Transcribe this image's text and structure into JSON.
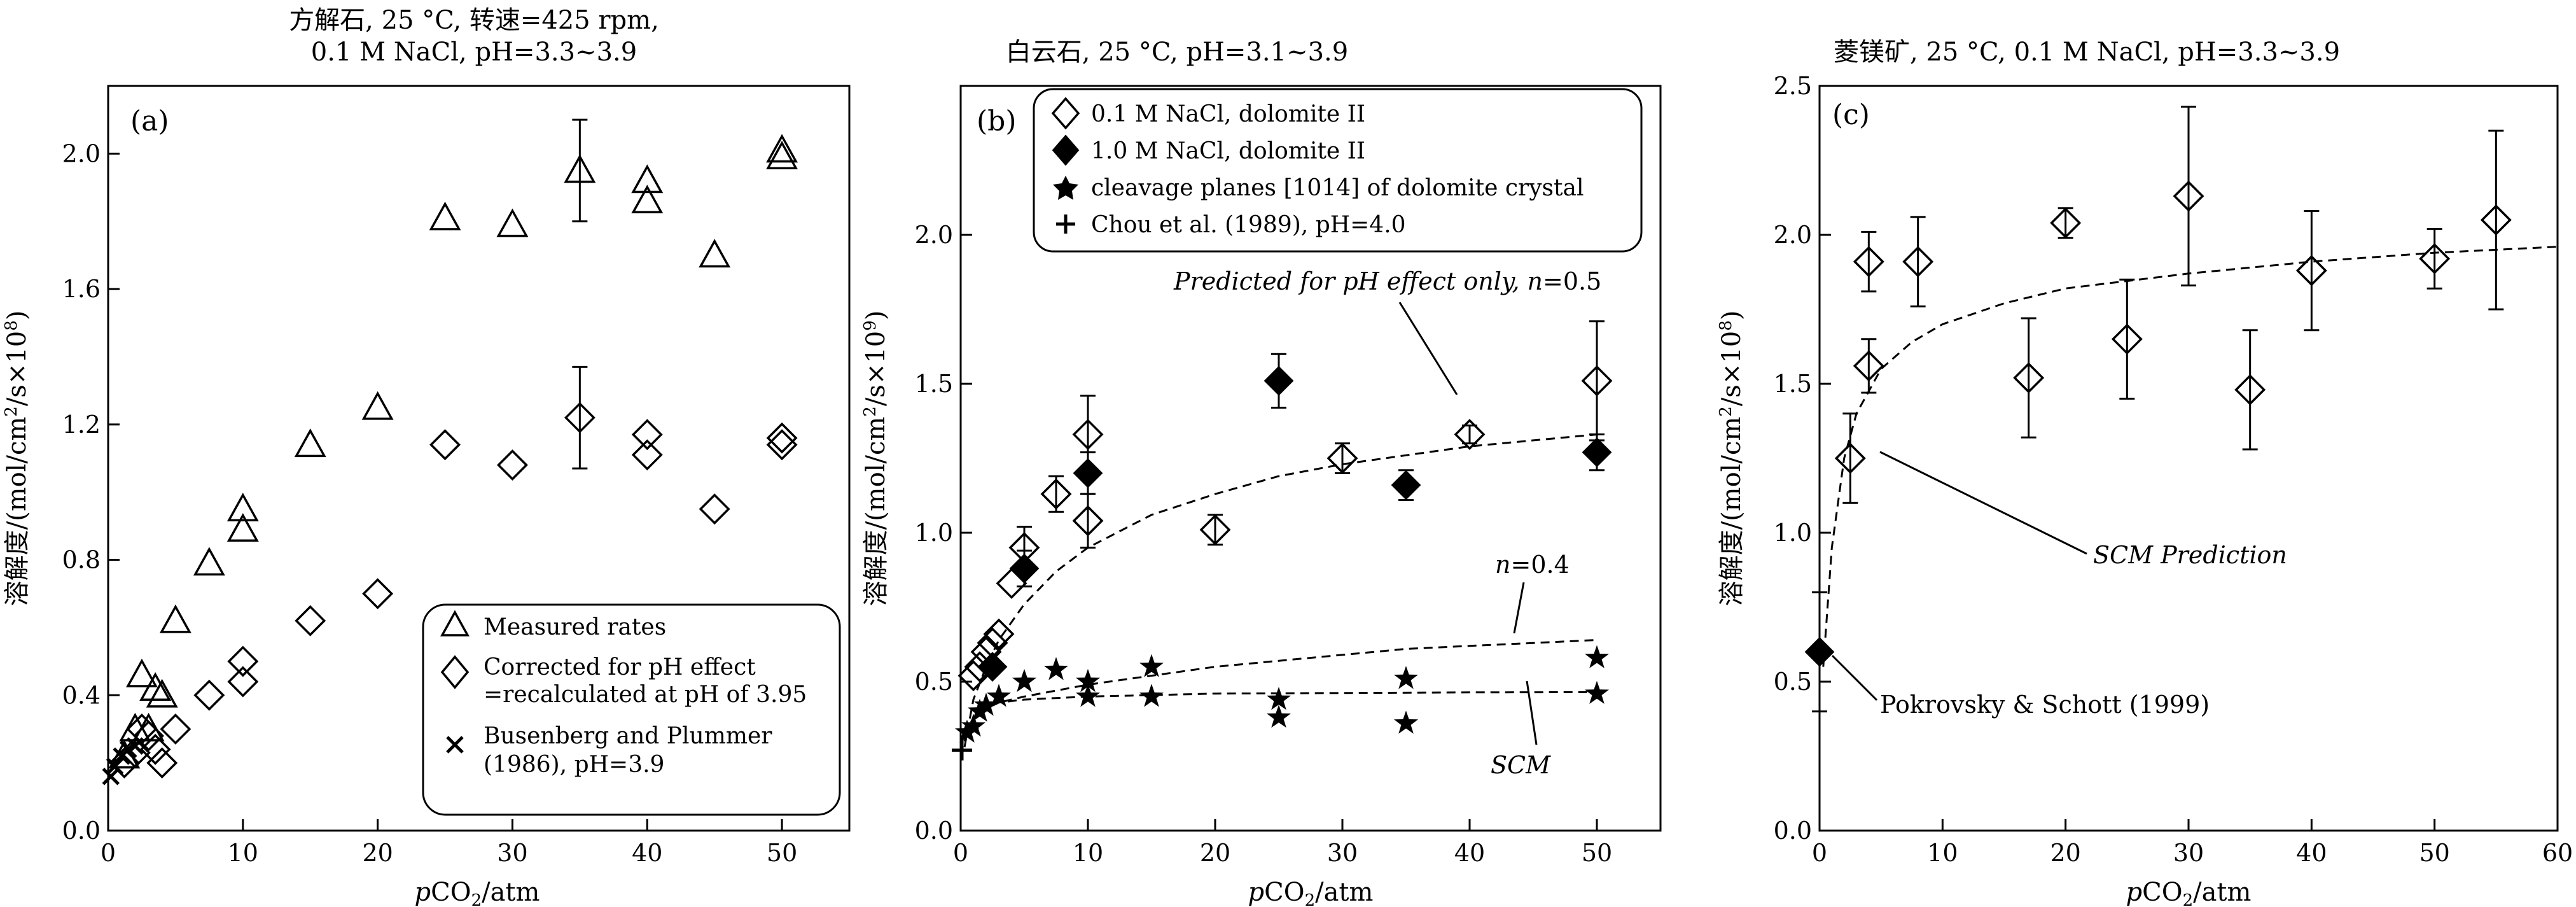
{
  "charts": [
    {
      "title_lines": [
        "方解石, 25 °C, 转速=425 rpm,",
        "0.1 M NaCl, pH=3.3~3.9"
      ],
      "panel_label": "(a)",
      "xlabel_var": "p",
      "xlabel_main": "CO",
      "xlabel_sub": "2",
      "xlabel_unit": "/atm",
      "ylabel_pre": "溶解度/(mol/cm",
      "ylabel_sup1": "2",
      "ylabel_mid": "/s×10",
      "ylabel_sup2": "8",
      "ylabel_post": ")",
      "legend": [
        {
          "label_lines": [
            "Measured rates"
          ]
        },
        {
          "label_lines": [
            "Corrected for pH effect",
            "=recalculated at pH of 3.95"
          ]
        },
        {
          "label_lines": [
            "Busenberg and Plummer",
            "(1986), pH=3.9"
          ]
        }
      ]
    },
    {
      "title_lines": [
        "白云石, 25 °C, pH=3.1~3.9"
      ],
      "panel_label": "(b)",
      "xlabel_var": "p",
      "xlabel_main": "CO",
      "xlabel_sub": "2",
      "xlabel_unit": "/atm",
      "ylabel_pre": "溶解度/(mol/cm",
      "ylabel_sup1": "2",
      "ylabel_mid": "/s×10",
      "ylabel_sup2": "9",
      "ylabel_post": ")",
      "legend": [
        {
          "label_lines": [
            "0.1 M NaCl, dolomite II"
          ]
        },
        {
          "label_lines": [
            "1.0 M NaCl, dolomite II"
          ]
        },
        {
          "label_lines": [
            "cleavage planes [1014] of dolomite crystal"
          ]
        },
        {
          "label_lines": [
            "Chou et al. (1989), pH=4.0"
          ]
        }
      ],
      "annotations": {
        "predicted_text": "Predicted for pH effect only, ",
        "predicted_n": "n",
        "predicted_val": "=0.5",
        "n04_n": "n",
        "n04_val": "=0.4",
        "scm": "SCM"
      }
    },
    {
      "title_lines": [
        "菱镁矿, 25 °C, 0.1 M NaCl, pH=3.3~3.9"
      ],
      "panel_label": "(c)",
      "xlabel_var": "p",
      "xlabel_main": "CO",
      "xlabel_sub": "2",
      "xlabel_unit": "/atm",
      "ylabel_pre": "溶解度/(mol/cm",
      "ylabel_sup1": "2",
      "ylabel_mid": "/s×10",
      "ylabel_sup2": "8",
      "ylabel_post": ")",
      "annotations": {
        "scm_prediction": "SCM Prediction",
        "pokrovsky": "Pokrovsky & Schott (1999)"
      }
    }
  ],
  "chart_data": [
    {
      "type": "scatter",
      "title": "方解石, 25 °C, 转速=425 rpm, 0.1 M NaCl, pH=3.3~3.9",
      "xlabel": "pCO2/atm",
      "ylabel": "溶解度/(mol/cm2/s×108)",
      "xlim": [
        0,
        55
      ],
      "ylim": [
        0,
        2.2
      ],
      "xticks": [
        0,
        10,
        20,
        30,
        40,
        50
      ],
      "yticks": [
        0.0,
        0.4,
        0.8,
        1.2,
        1.6,
        2.0
      ],
      "xtick_labels": [
        "0",
        "10",
        "20",
        "30",
        "40",
        "50"
      ],
      "ytick_labels": [
        "0.0",
        "0.4",
        "0.8",
        "1.2",
        "1.6",
        "2.0"
      ],
      "series": [
        {
          "name": "Measured rates",
          "marker": "triangle-open",
          "x": [
            1.2,
            2.0,
            2.5,
            3.0,
            3.5,
            4.0,
            5.0,
            7.5,
            10,
            10,
            15,
            20,
            25,
            30,
            35,
            40,
            40,
            45,
            50,
            50
          ],
          "y": [
            0.22,
            0.3,
            0.46,
            0.3,
            0.42,
            0.4,
            0.62,
            0.79,
            0.95,
            0.89,
            1.14,
            1.25,
            1.81,
            1.79,
            1.95,
            1.92,
            1.86,
            1.7,
            2.01,
            1.99
          ],
          "err": [
            null,
            null,
            null,
            null,
            null,
            null,
            null,
            null,
            null,
            null,
            null,
            null,
            null,
            null,
            0.15,
            null,
            null,
            null,
            null,
            null
          ]
        },
        {
          "name": "Corrected for pH effect =recalculated at pH of 3.95",
          "marker": "diamond-open",
          "x": [
            1.2,
            2.0,
            2.5,
            3.0,
            3.5,
            4.0,
            5.0,
            7.5,
            10,
            10,
            15,
            20,
            25,
            30,
            35,
            40,
            40,
            45,
            50,
            50
          ],
          "y": [
            0.2,
            0.23,
            0.3,
            0.28,
            0.24,
            0.2,
            0.3,
            0.4,
            0.44,
            0.5,
            0.62,
            0.7,
            1.14,
            1.08,
            1.22,
            1.17,
            1.11,
            0.95,
            1.16,
            1.14
          ],
          "err": [
            null,
            null,
            null,
            null,
            null,
            null,
            null,
            null,
            null,
            null,
            null,
            null,
            null,
            null,
            0.15,
            null,
            null,
            null,
            null,
            null
          ]
        },
        {
          "name": "Busenberg and Plummer (1986), pH=3.9",
          "marker": "x",
          "x": [
            0.2,
            0.5,
            1.0,
            1.5,
            2.0
          ],
          "y": [
            0.16,
            0.19,
            0.22,
            0.24,
            0.25
          ]
        }
      ]
    },
    {
      "type": "scatter",
      "title": "白云石, 25 °C, pH=3.1~3.9",
      "xlabel": "pCO2/atm",
      "ylabel": "溶解度/(mol/cm2/s×109)",
      "xlim": [
        0,
        55
      ],
      "ylim": [
        0,
        2.5
      ],
      "xticks": [
        0,
        10,
        20,
        30,
        40,
        50
      ],
      "yticks": [
        0.0,
        0.5,
        1.0,
        1.5,
        2.0
      ],
      "xtick_labels": [
        "0",
        "10",
        "20",
        "30",
        "40",
        "50"
      ],
      "ytick_labels": [
        "0.0",
        "0.5",
        "1.0",
        "1.5",
        "2.0"
      ],
      "series": [
        {
          "name": "0.1 M NaCl, dolomite II",
          "marker": "diamond-open",
          "x": [
            1.0,
            1.5,
            2.0,
            2.5,
            3.0,
            4.0,
            5.0,
            7.5,
            10,
            10,
            20,
            30,
            40,
            50
          ],
          "y": [
            0.52,
            0.55,
            0.6,
            0.63,
            0.66,
            0.83,
            0.95,
            1.13,
            1.33,
            1.04,
            1.01,
            1.25,
            1.33,
            1.51
          ],
          "err": [
            null,
            null,
            null,
            null,
            null,
            null,
            0.07,
            0.06,
            0.13,
            0.09,
            0.05,
            0.05,
            0.03,
            0.2
          ]
        },
        {
          "name": "1.0 M NaCl, dolomite II",
          "marker": "diamond-filled",
          "x": [
            2.5,
            5.0,
            10,
            25,
            35,
            50
          ],
          "y": [
            0.55,
            0.88,
            1.2,
            1.51,
            1.16,
            1.27
          ],
          "err": [
            null,
            0.06,
            0.07,
            0.09,
            0.05,
            0.06
          ]
        },
        {
          "name": "cleavage planes [1014] of dolomite crystal",
          "marker": "star",
          "x": [
            0.5,
            1.0,
            1.5,
            2.0,
            3.0,
            5.0,
            7.5,
            10,
            10,
            15,
            15,
            25,
            25,
            35,
            35,
            50,
            50
          ],
          "y": [
            0.33,
            0.35,
            0.4,
            0.42,
            0.45,
            0.5,
            0.54,
            0.45,
            0.5,
            0.45,
            0.55,
            0.44,
            0.38,
            0.51,
            0.36,
            0.46,
            0.58
          ]
        },
        {
          "name": "Chou et al. (1989), pH=4.0",
          "marker": "plus",
          "x": [
            0.1
          ],
          "y": [
            0.27
          ]
        }
      ],
      "curves": [
        {
          "label": "Predicted for pH effect only, n=0.5",
          "x": [
            0.3,
            1,
            2,
            3,
            5,
            7.5,
            10,
            15,
            20,
            25,
            30,
            35,
            40,
            45,
            50
          ],
          "y": [
            0.28,
            0.44,
            0.55,
            0.64,
            0.76,
            0.87,
            0.95,
            1.06,
            1.13,
            1.19,
            1.23,
            1.26,
            1.29,
            1.31,
            1.33
          ]
        },
        {
          "label": "n=0.4",
          "x": [
            0.3,
            1,
            2,
            3,
            5,
            7.5,
            10,
            15,
            20,
            25,
            30,
            35,
            40,
            45,
            50
          ],
          "y": [
            0.3,
            0.37,
            0.41,
            0.43,
            0.45,
            0.47,
            0.49,
            0.52,
            0.55,
            0.57,
            0.59,
            0.61,
            0.62,
            0.63,
            0.64
          ]
        },
        {
          "label": "SCM",
          "x": [
            0.3,
            1,
            2,
            3,
            5,
            7.5,
            10,
            15,
            20,
            30,
            40,
            50
          ],
          "y": [
            0.32,
            0.38,
            0.41,
            0.43,
            0.44,
            0.445,
            0.45,
            0.455,
            0.46,
            0.462,
            0.464,
            0.465
          ]
        }
      ]
    },
    {
      "type": "scatter",
      "title": "菱镁矿, 25 °C, 0.1 M NaCl, pH=3.3~3.9",
      "xlabel": "pCO2/atm",
      "ylabel": "溶解度/(mol/cm2/s×108)",
      "xlim": [
        0,
        60
      ],
      "ylim": [
        0,
        2.5
      ],
      "xticks": [
        0,
        10,
        20,
        30,
        40,
        50,
        60
      ],
      "yticks": [
        0.0,
        0.5,
        1.0,
        1.5,
        2.0,
        2.5
      ],
      "xtick_labels": [
        "0",
        "10",
        "20",
        "30",
        "40",
        "50",
        "60"
      ],
      "ytick_labels": [
        "0.0",
        "0.5",
        "1.0",
        "1.5",
        "2.0",
        "2.5"
      ],
      "series": [
        {
          "name": "0.1 M NaCl",
          "marker": "diamond-open",
          "x": [
            2.5,
            4.0,
            4.0,
            8.0,
            17,
            20,
            25,
            30,
            35,
            40,
            50,
            55
          ],
          "y": [
            1.25,
            1.56,
            1.91,
            1.91,
            1.52,
            2.04,
            1.65,
            2.13,
            1.48,
            1.88,
            1.92,
            2.05
          ],
          "err": [
            0.15,
            0.09,
            0.1,
            0.15,
            0.2,
            0.05,
            0.2,
            0.3,
            0.2,
            0.2,
            0.1,
            0.3
          ]
        },
        {
          "name": "Pokrovsky & Schott (1999)",
          "marker": "diamond-filled",
          "x": [
            0
          ],
          "y": [
            0.6
          ],
          "err": [
            0.2
          ]
        }
      ],
      "curves": [
        {
          "label": "SCM Prediction",
          "x": [
            0.3,
            1,
            2,
            3,
            5,
            7.5,
            10,
            15,
            20,
            30,
            40,
            50,
            60
          ],
          "y": [
            0.55,
            0.95,
            1.25,
            1.4,
            1.55,
            1.64,
            1.7,
            1.77,
            1.82,
            1.87,
            1.91,
            1.94,
            1.96
          ]
        }
      ]
    }
  ]
}
